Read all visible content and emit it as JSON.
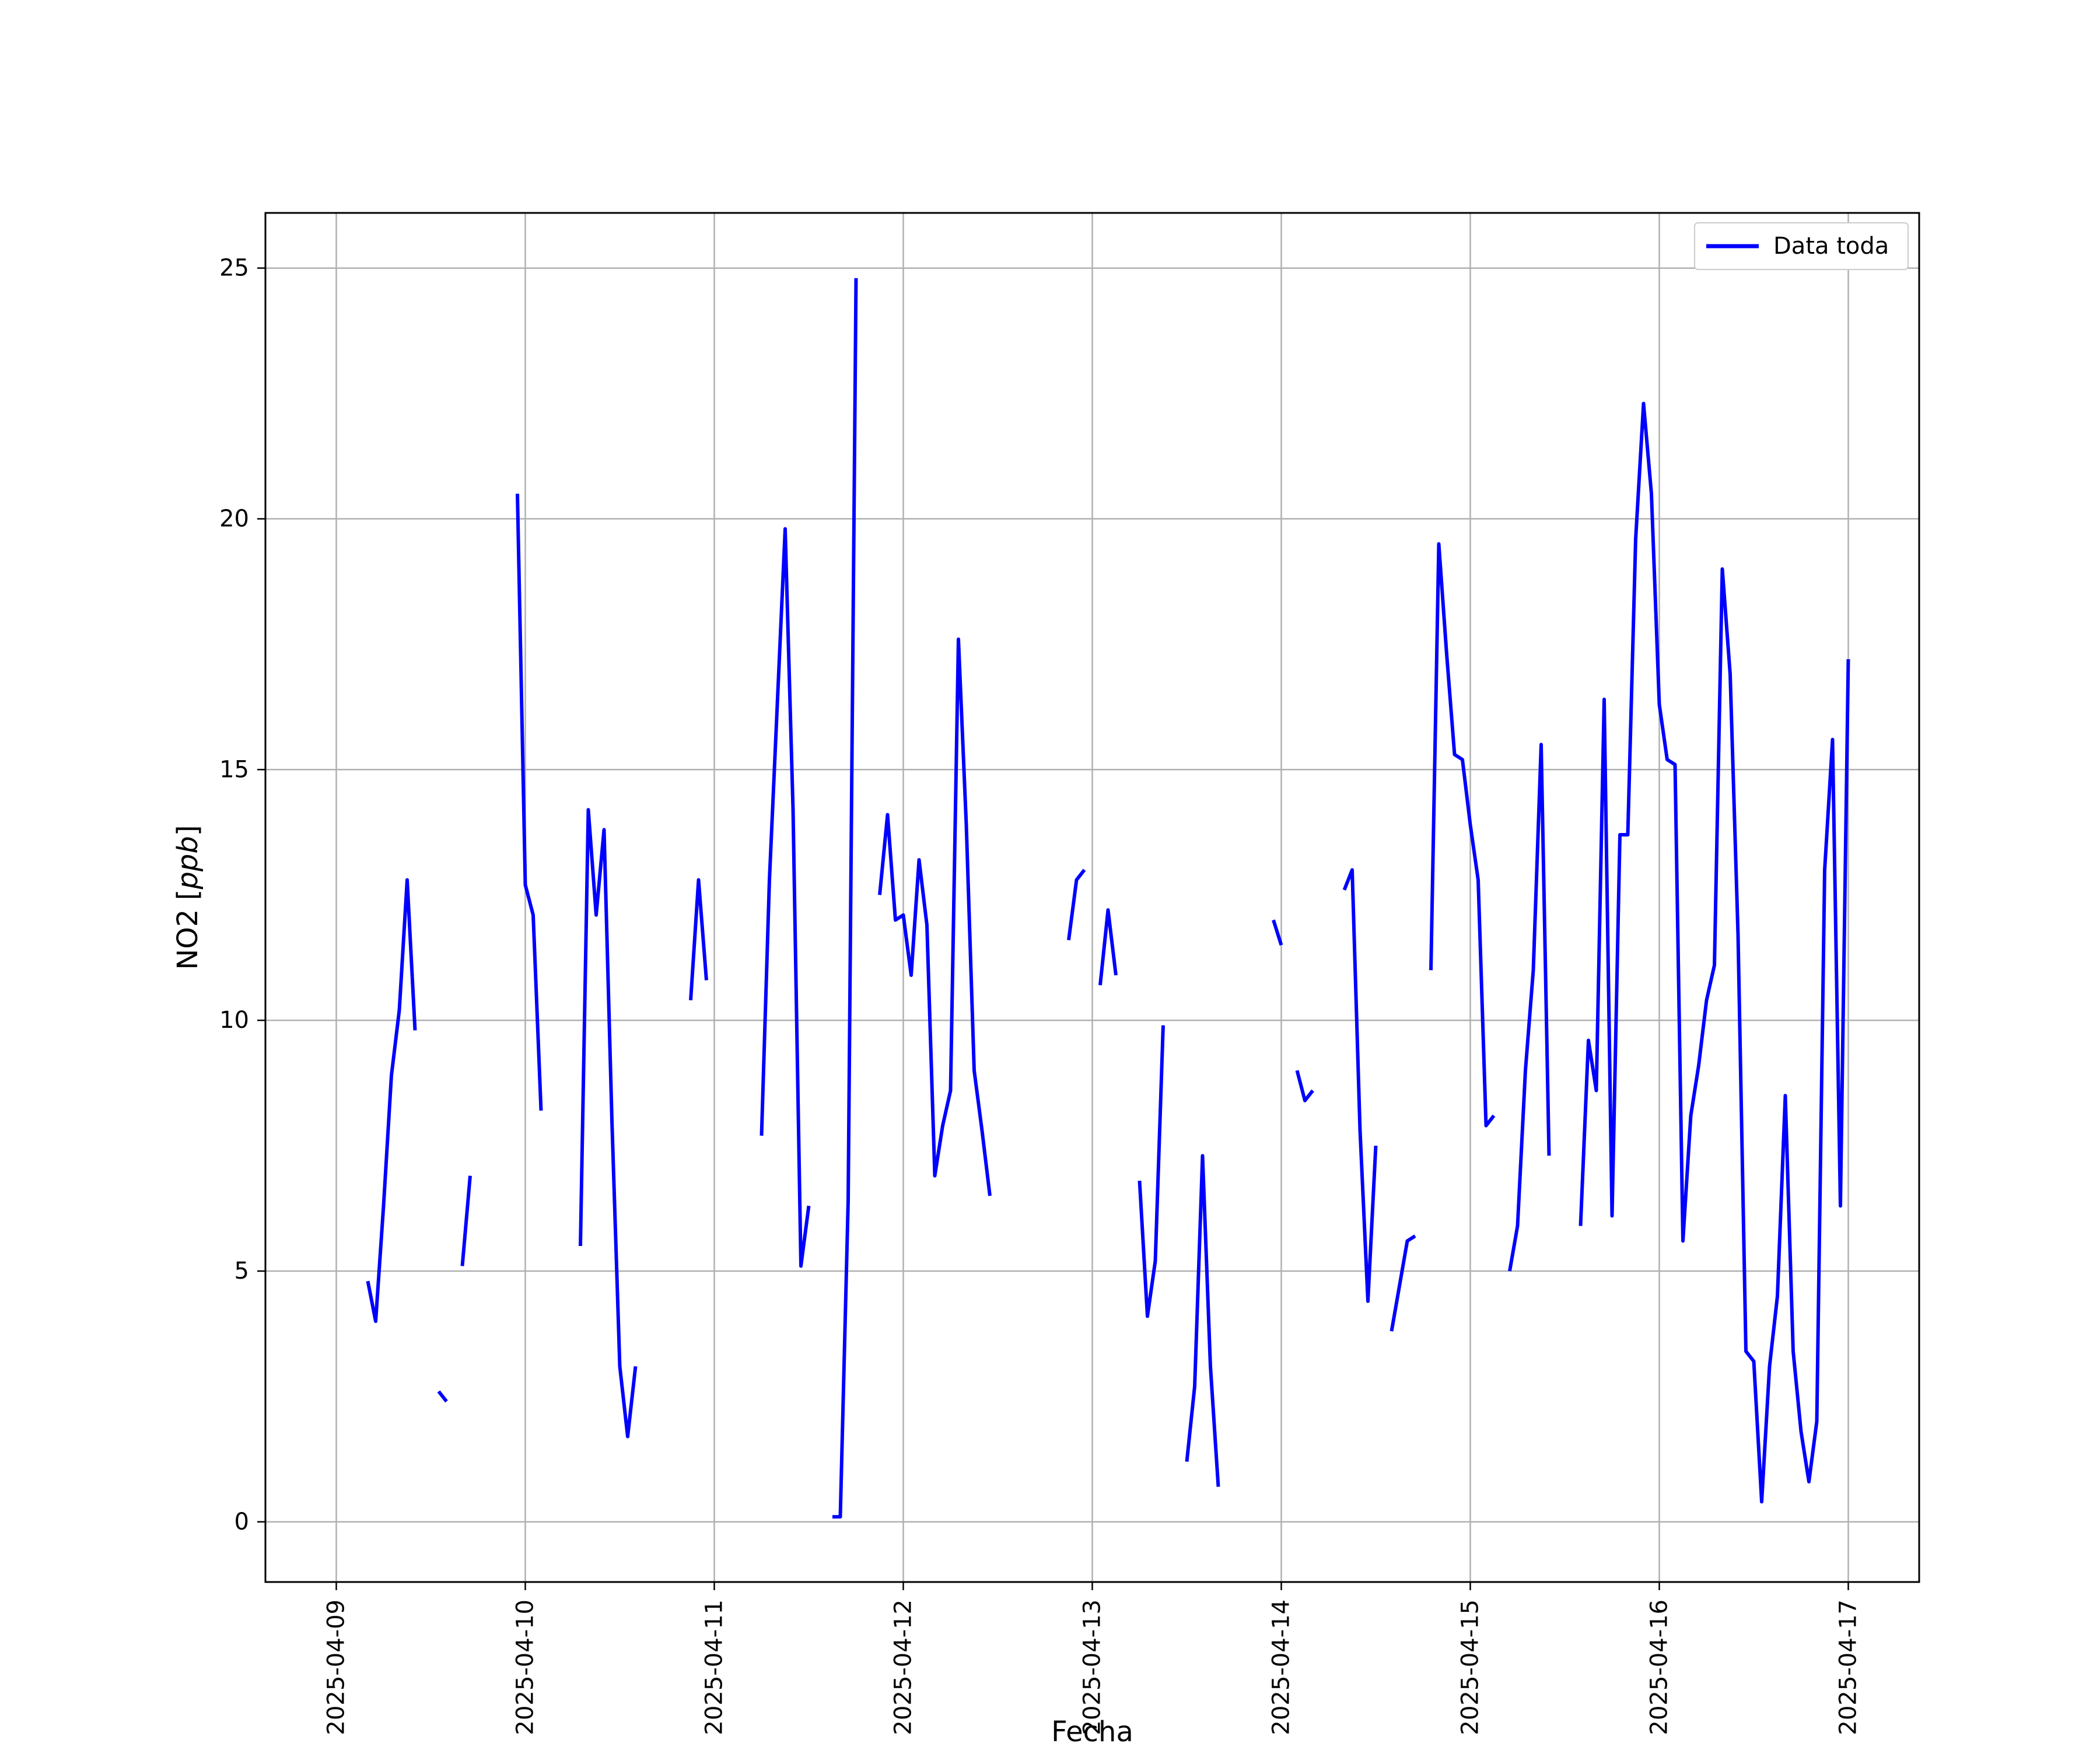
{
  "chart_data": {
    "type": "line",
    "title": "",
    "xlabel": "Fecha",
    "ylabel": "NO2 [ppb]",
    "ylabel_main": "NO2 [",
    "ylabel_unit": "ppb",
    "ylabel_close": "]",
    "xlim": [
      "2025-04-08 15:00",
      "2025-04-17 09:00"
    ],
    "ylim": [
      -1.2,
      26.1
    ],
    "x_ticks": [
      "2025-04-09",
      "2025-04-10",
      "2025-04-11",
      "2025-04-12",
      "2025-04-13",
      "2025-04-14",
      "2025-04-15",
      "2025-04-16",
      "2025-04-17"
    ],
    "y_ticks": [
      0,
      5,
      10,
      15,
      20,
      25
    ],
    "y_tick_labels": [
      "0",
      "5",
      "10",
      "15",
      "20",
      "25"
    ],
    "grid": true,
    "legend_position": "top-right",
    "colors": {
      "series": "#0000ff",
      "grid": "#b0b0b0",
      "frame": "#000000"
    },
    "series": [
      {
        "name": "Data toda",
        "segments": [
          [
            [
              "2025-04-09 04:00",
              4.8
            ],
            [
              "2025-04-09 05:00",
              4.0
            ],
            [
              "2025-04-09 06:00",
              6.3
            ],
            [
              "2025-04-09 07:00",
              8.9
            ],
            [
              "2025-04-09 08:00",
              10.2
            ],
            [
              "2025-04-09 09:00",
              12.8
            ],
            [
              "2025-04-09 10:00",
              9.8
            ]
          ],
          [
            [
              "2025-04-09 13:00",
              2.6
            ],
            [
              "2025-04-09 14:00",
              2.4
            ]
          ],
          [
            [
              "2025-04-09 16:00",
              5.1
            ],
            [
              "2025-04-09 17:00",
              6.9
            ]
          ],
          [
            [
              "2025-04-09 23:00",
              20.5
            ],
            [
              "2025-04-10 00:00",
              12.7
            ],
            [
              "2025-04-10 01:00",
              12.1
            ],
            [
              "2025-04-10 02:00",
              8.2
            ]
          ],
          [
            [
              "2025-04-10 07:00",
              5.5
            ],
            [
              "2025-04-10 08:00",
              14.2
            ],
            [
              "2025-04-10 09:00",
              12.1
            ],
            [
              "2025-04-10 10:00",
              13.8
            ],
            [
              "2025-04-10 11:00",
              8.0
            ],
            [
              "2025-04-10 12:00",
              3.1
            ],
            [
              "2025-04-10 13:00",
              1.7
            ],
            [
              "2025-04-10 14:00",
              3.1
            ]
          ],
          [
            [
              "2025-04-10 21:00",
              10.4
            ],
            [
              "2025-04-10 22:00",
              12.8
            ],
            [
              "2025-04-10 23:00",
              10.8
            ]
          ],
          [
            [
              "2025-04-11 06:00",
              7.7
            ],
            [
              "2025-04-11 07:00",
              12.8
            ],
            [
              "2025-04-11 08:00",
              16.3
            ],
            [
              "2025-04-11 09:00",
              19.8
            ],
            [
              "2025-04-11 10:00",
              14.2
            ],
            [
              "2025-04-11 11:00",
              5.1
            ],
            [
              "2025-04-11 12:00",
              6.3
            ]
          ],
          [
            [
              "2025-04-11 15:00",
              0.1
            ],
            [
              "2025-04-11 16:00",
              0.1
            ],
            [
              "2025-04-11 17:00",
              6.4
            ],
            [
              "2025-04-11 18:00",
              24.8
            ]
          ],
          [
            [
              "2025-04-11 21:00",
              12.5
            ],
            [
              "2025-04-11 22:00",
              14.1
            ],
            [
              "2025-04-11 23:00",
              12.0
            ],
            [
              "2025-04-12 00:00",
              12.1
            ],
            [
              "2025-04-12 01:00",
              10.9
            ],
            [
              "2025-04-12 02:00",
              13.2
            ],
            [
              "2025-04-12 03:00",
              11.9
            ],
            [
              "2025-04-12 04:00",
              6.9
            ],
            [
              "2025-04-12 05:00",
              7.9
            ],
            [
              "2025-04-12 06:00",
              8.6
            ],
            [
              "2025-04-12 07:00",
              17.6
            ],
            [
              "2025-04-12 08:00",
              13.9
            ],
            [
              "2025-04-12 09:00",
              9.0
            ],
            [
              "2025-04-12 10:00",
              7.8
            ],
            [
              "2025-04-12 11:00",
              6.5
            ]
          ],
          [
            [
              "2025-04-12 21:00",
              11.6
            ],
            [
              "2025-04-12 22:00",
              12.8
            ],
            [
              "2025-04-12 23:00",
              13.0
            ]
          ],
          [
            [
              "2025-04-13 01:00",
              10.7
            ],
            [
              "2025-04-13 02:00",
              12.2
            ],
            [
              "2025-04-13 03:00",
              10.9
            ]
          ],
          [
            [
              "2025-04-13 06:00",
              6.8
            ],
            [
              "2025-04-13 07:00",
              4.1
            ],
            [
              "2025-04-13 08:00",
              5.2
            ],
            [
              "2025-04-13 09:00",
              9.9
            ]
          ],
          [
            [
              "2025-04-13 12:00",
              1.2
            ],
            [
              "2025-04-13 13:00",
              2.7
            ],
            [
              "2025-04-13 14:00",
              7.3
            ],
            [
              "2025-04-13 15:00",
              3.1
            ],
            [
              "2025-04-13 16:00",
              0.7
            ]
          ],
          [
            [
              "2025-04-13 23:00",
              12.0
            ],
            [
              "2025-04-14 00:00",
              11.5
            ]
          ],
          [
            [
              "2025-04-14 02:00",
              9.0
            ],
            [
              "2025-04-14 03:00",
              8.4
            ],
            [
              "2025-04-14 04:00",
              8.6
            ]
          ],
          [
            [
              "2025-04-14 08:00",
              12.6
            ],
            [
              "2025-04-14 09:00",
              13.0
            ],
            [
              "2025-04-14 10:00",
              7.8
            ],
            [
              "2025-04-14 11:00",
              4.4
            ],
            [
              "2025-04-14 12:00",
              7.5
            ]
          ],
          [
            [
              "2025-04-14 14:00",
              3.8
            ],
            [
              "2025-04-14 15:00",
              4.7
            ],
            [
              "2025-04-14 16:00",
              5.6
            ],
            [
              "2025-04-14 17:00",
              5.7
            ]
          ],
          [
            [
              "2025-04-14 19:00",
              11.0
            ],
            [
              "2025-04-14 20:00",
              19.5
            ],
            [
              "2025-04-14 21:00",
              17.3
            ],
            [
              "2025-04-14 22:00",
              15.3
            ],
            [
              "2025-04-14 23:00",
              15.2
            ],
            [
              "2025-04-15 00:00",
              13.9
            ],
            [
              "2025-04-15 01:00",
              12.8
            ],
            [
              "2025-04-15 02:00",
              7.9
            ],
            [
              "2025-04-15 03:00",
              8.1
            ]
          ],
          [
            [
              "2025-04-15 05:00",
              5.0
            ],
            [
              "2025-04-15 06:00",
              5.9
            ],
            [
              "2025-04-15 07:00",
              9.0
            ],
            [
              "2025-04-15 08:00",
              11.0
            ],
            [
              "2025-04-15 09:00",
              15.5
            ],
            [
              "2025-04-15 10:00",
              7.3
            ]
          ],
          [
            [
              "2025-04-15 14:00",
              5.9
            ],
            [
              "2025-04-15 15:00",
              9.6
            ],
            [
              "2025-04-15 16:00",
              8.6
            ],
            [
              "2025-04-15 17:00",
              16.4
            ],
            [
              "2025-04-15 18:00",
              6.1
            ],
            [
              "2025-04-15 19:00",
              13.7
            ],
            [
              "2025-04-15 20:00",
              13.7
            ],
            [
              "2025-04-15 21:00",
              19.6
            ],
            [
              "2025-04-15 22:00",
              22.3
            ],
            [
              "2025-04-15 23:00",
              20.5
            ],
            [
              "2025-04-16 00:00",
              16.3
            ],
            [
              "2025-04-16 01:00",
              15.2
            ],
            [
              "2025-04-16 02:00",
              15.1
            ],
            [
              "2025-04-16 03:00",
              5.6
            ],
            [
              "2025-04-16 04:00",
              8.1
            ],
            [
              "2025-04-16 05:00",
              9.1
            ],
            [
              "2025-04-16 06:00",
              10.4
            ],
            [
              "2025-04-16 07:00",
              11.1
            ],
            [
              "2025-04-16 08:00",
              19.0
            ],
            [
              "2025-04-16 09:00",
              16.9
            ],
            [
              "2025-04-16 10:00",
              11.7
            ],
            [
              "2025-04-16 11:00",
              3.4
            ],
            [
              "2025-04-16 12:00",
              3.2
            ],
            [
              "2025-04-16 13:00",
              0.4
            ],
            [
              "2025-04-16 14:00",
              3.1
            ],
            [
              "2025-04-16 15:00",
              4.5
            ],
            [
              "2025-04-16 16:00",
              8.5
            ],
            [
              "2025-04-16 17:00",
              3.4
            ],
            [
              "2025-04-16 18:00",
              1.8
            ],
            [
              "2025-04-16 19:00",
              0.8
            ],
            [
              "2025-04-16 20:00",
              2.0
            ],
            [
              "2025-04-16 21:00",
              13.0
            ],
            [
              "2025-04-16 22:00",
              15.6
            ],
            [
              "2025-04-16 23:00",
              6.3
            ],
            [
              "2025-04-17 00:00",
              17.2
            ]
          ]
        ]
      }
    ]
  }
}
